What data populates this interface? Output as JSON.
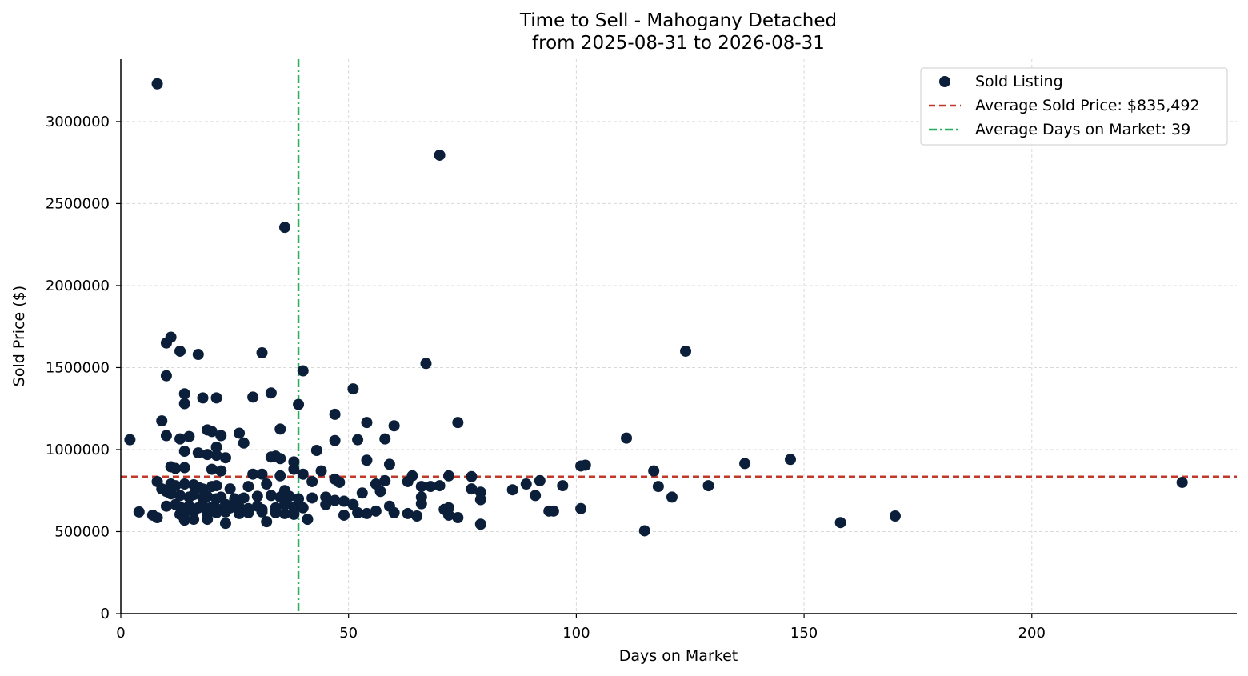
{
  "colors": {
    "point": "#0b1f3a",
    "avg_price_line": "#c0392b",
    "avg_days_line": "#27ae60",
    "grid": "#d9d9d9",
    "axis": "#000000"
  },
  "chart_data": {
    "type": "scatter",
    "title": "Time to Sell - Mahogany Detached",
    "subtitle": "from 2025-08-31 to 2026-08-31",
    "xlabel": "Days on Market",
    "ylabel": "Sold Price ($)",
    "xlim": [
      0,
      245
    ],
    "ylim": [
      0,
      3380000
    ],
    "x_ticks": [
      0,
      50,
      100,
      150,
      200
    ],
    "y_ticks": [
      0,
      500000,
      1000000,
      1500000,
      2000000,
      2500000,
      3000000
    ],
    "grid": true,
    "legend_position": "top-right",
    "legend": {
      "points": "Sold Listing",
      "avg_price": "Average Sold Price: $835,492",
      "avg_days": "Average Days on Market: 39"
    },
    "avg_price": 835492,
    "avg_days": 39,
    "series": [
      {
        "name": "Sold Listing",
        "points": [
          [
            8,
            3230000
          ],
          [
            70,
            2795000
          ],
          [
            36,
            2355000
          ],
          [
            11,
            1685000
          ],
          [
            10,
            1650000
          ],
          [
            13,
            1600000
          ],
          [
            17,
            1580000
          ],
          [
            31,
            1590000
          ],
          [
            124,
            1600000
          ],
          [
            67,
            1525000
          ],
          [
            40,
            1480000
          ],
          [
            10,
            1450000
          ],
          [
            51,
            1370000
          ],
          [
            14,
            1340000
          ],
          [
            33,
            1345000
          ],
          [
            18,
            1315000
          ],
          [
            21,
            1315000
          ],
          [
            29,
            1320000
          ],
          [
            14,
            1280000
          ],
          [
            39,
            1275000
          ],
          [
            47,
            1215000
          ],
          [
            9,
            1175000
          ],
          [
            54,
            1165000
          ],
          [
            74,
            1165000
          ],
          [
            60,
            1145000
          ],
          [
            35,
            1125000
          ],
          [
            19,
            1120000
          ],
          [
            20,
            1110000
          ],
          [
            26,
            1100000
          ],
          [
            10,
            1085000
          ],
          [
            15,
            1080000
          ],
          [
            22,
            1085000
          ],
          [
            13,
            1065000
          ],
          [
            47,
            1055000
          ],
          [
            52,
            1060000
          ],
          [
            58,
            1065000
          ],
          [
            2,
            1060000
          ],
          [
            27,
            1040000
          ],
          [
            111,
            1070000
          ],
          [
            21,
            1015000
          ],
          [
            43,
            995000
          ],
          [
            14,
            990000
          ],
          [
            17,
            980000
          ],
          [
            19,
            970000
          ],
          [
            21,
            965000
          ],
          [
            23,
            950000
          ],
          [
            33,
            955000
          ],
          [
            34,
            960000
          ],
          [
            35,
            945000
          ],
          [
            54,
            935000
          ],
          [
            38,
            925000
          ],
          [
            59,
            910000
          ],
          [
            11,
            895000
          ],
          [
            12,
            885000
          ],
          [
            14,
            890000
          ],
          [
            20,
            880000
          ],
          [
            22,
            870000
          ],
          [
            102,
            905000
          ],
          [
            101,
            900000
          ],
          [
            137,
            915000
          ],
          [
            147,
            940000
          ],
          [
            117,
            870000
          ],
          [
            44,
            870000
          ],
          [
            29,
            850000
          ],
          [
            31,
            850000
          ],
          [
            38,
            880000
          ],
          [
            35,
            840000
          ],
          [
            40,
            850000
          ],
          [
            64,
            840000
          ],
          [
            72,
            840000
          ],
          [
            77,
            835000
          ],
          [
            47,
            820000
          ],
          [
            8,
            805000
          ],
          [
            11,
            790000
          ],
          [
            12,
            780000
          ],
          [
            14,
            790000
          ],
          [
            16,
            785000
          ],
          [
            17,
            770000
          ],
          [
            18,
            760000
          ],
          [
            20,
            775000
          ],
          [
            21,
            780000
          ],
          [
            24,
            760000
          ],
          [
            28,
            775000
          ],
          [
            32,
            790000
          ],
          [
            36,
            750000
          ],
          [
            42,
            805000
          ],
          [
            48,
            800000
          ],
          [
            56,
            790000
          ],
          [
            58,
            810000
          ],
          [
            63,
            805000
          ],
          [
            66,
            775000
          ],
          [
            68,
            775000
          ],
          [
            70,
            780000
          ],
          [
            77,
            760000
          ],
          [
            79,
            740000
          ],
          [
            86,
            755000
          ],
          [
            89,
            790000
          ],
          [
            92,
            810000
          ],
          [
            97,
            780000
          ],
          [
            118,
            775000
          ],
          [
            129,
            780000
          ],
          [
            233,
            800000
          ],
          [
            9,
            760000
          ],
          [
            10,
            745000
          ],
          [
            11,
            730000
          ],
          [
            13,
            720000
          ],
          [
            15,
            710000
          ],
          [
            16,
            725000
          ],
          [
            18,
            705000
          ],
          [
            19,
            715000
          ],
          [
            21,
            700000
          ],
          [
            22,
            710000
          ],
          [
            25,
            700000
          ],
          [
            27,
            705000
          ],
          [
            30,
            715000
          ],
          [
            33,
            720000
          ],
          [
            35,
            710000
          ],
          [
            37,
            715000
          ],
          [
            39,
            700000
          ],
          [
            42,
            705000
          ],
          [
            45,
            710000
          ],
          [
            47,
            690000
          ],
          [
            49,
            685000
          ],
          [
            53,
            735000
          ],
          [
            57,
            745000
          ],
          [
            66,
            710000
          ],
          [
            79,
            695000
          ],
          [
            91,
            720000
          ],
          [
            121,
            710000
          ],
          [
            10,
            655000
          ],
          [
            12,
            665000
          ],
          [
            13,
            650000
          ],
          [
            14,
            640000
          ],
          [
            15,
            655000
          ],
          [
            17,
            645000
          ],
          [
            18,
            660000
          ],
          [
            20,
            650000
          ],
          [
            21,
            640000
          ],
          [
            23,
            665000
          ],
          [
            24,
            645000
          ],
          [
            26,
            650000
          ],
          [
            28,
            640000
          ],
          [
            30,
            655000
          ],
          [
            31,
            635000
          ],
          [
            34,
            645000
          ],
          [
            36,
            665000
          ],
          [
            38,
            650000
          ],
          [
            40,
            645000
          ],
          [
            45,
            665000
          ],
          [
            51,
            665000
          ],
          [
            59,
            655000
          ],
          [
            66,
            670000
          ],
          [
            72,
            645000
          ],
          [
            71,
            635000
          ],
          [
            94,
            625000
          ],
          [
            95,
            625000
          ],
          [
            101,
            640000
          ],
          [
            4,
            620000
          ],
          [
            7,
            600000
          ],
          [
            13,
            605000
          ],
          [
            14,
            615000
          ],
          [
            16,
            620000
          ],
          [
            19,
            610000
          ],
          [
            21,
            615000
          ],
          [
            23,
            620000
          ],
          [
            26,
            610000
          ],
          [
            28,
            615000
          ],
          [
            31,
            620000
          ],
          [
            34,
            615000
          ],
          [
            36,
            610000
          ],
          [
            38,
            605000
          ],
          [
            49,
            600000
          ],
          [
            52,
            615000
          ],
          [
            54,
            610000
          ],
          [
            56,
            625000
          ],
          [
            60,
            615000
          ],
          [
            63,
            610000
          ],
          [
            65,
            595000
          ],
          [
            72,
            600000
          ],
          [
            8,
            585000
          ],
          [
            14,
            570000
          ],
          [
            16,
            575000
          ],
          [
            19,
            575000
          ],
          [
            23,
            550000
          ],
          [
            32,
            560000
          ],
          [
            41,
            575000
          ],
          [
            74,
            585000
          ],
          [
            79,
            545000
          ],
          [
            115,
            505000
          ],
          [
            158,
            555000
          ],
          [
            170,
            595000
          ]
        ]
      }
    ]
  }
}
